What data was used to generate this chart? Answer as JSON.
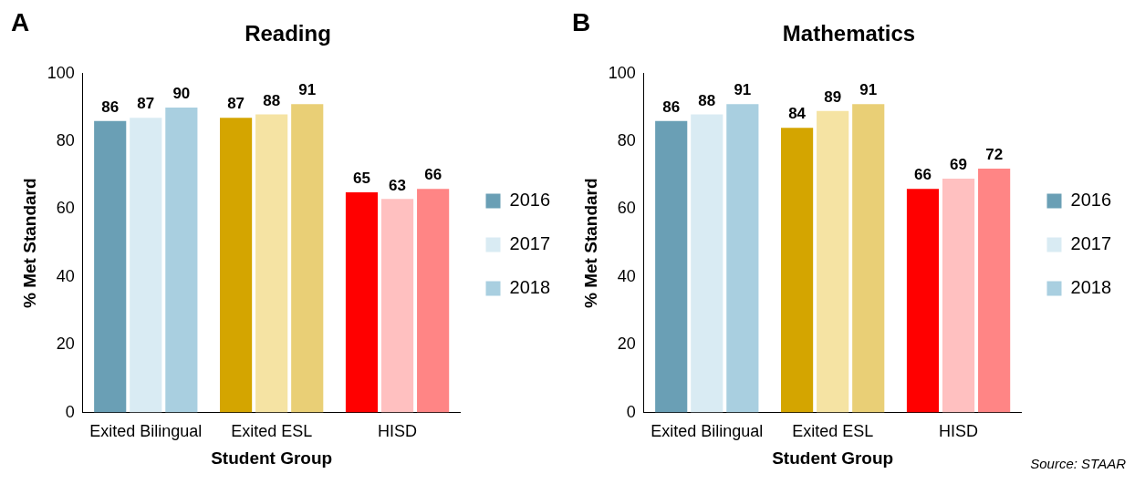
{
  "chart_data": [
    {
      "type": "bar",
      "title": "Reading",
      "xlabel": "Student Group",
      "ylabel": "% Met Standard",
      "categories": [
        "Exited Bilingual",
        "Exited ESL",
        "HISD"
      ],
      "series": [
        {
          "name": "2016",
          "color": "#6a9fb5",
          "colors": [
            "#6a9fb5",
            "#d4a500",
            "#ff0000"
          ],
          "values": [
            86,
            87,
            65
          ]
        },
        {
          "name": "2017",
          "color": "#d9ebf3",
          "colors": [
            "#d9ebf3",
            "#f5e3a3",
            "#ffc0c0"
          ],
          "values": [
            87,
            88,
            63
          ]
        },
        {
          "name": "2018",
          "color": "#a9cfe0",
          "colors": [
            "#a9cfe0",
            "#e9cf76",
            "#ff8585"
          ],
          "values": [
            90,
            91,
            66
          ]
        }
      ],
      "ylim": [
        0,
        100
      ],
      "yticks": [
        0,
        20,
        40,
        60,
        80,
        100
      ],
      "data_labels": true,
      "legend": "right",
      "annotations": [
        "A"
      ]
    },
    {
      "type": "bar",
      "title": "Mathematics",
      "xlabel": "Student Group",
      "ylabel": "% Met Standard",
      "categories": [
        "Exited Bilingual",
        "Exited ESL",
        "HISD"
      ],
      "series": [
        {
          "name": "2016",
          "color": "#6a9fb5",
          "colors": [
            "#6a9fb5",
            "#d4a500",
            "#ff0000"
          ],
          "values": [
            86,
            84,
            66
          ]
        },
        {
          "name": "2017",
          "color": "#d9ebf3",
          "colors": [
            "#d9ebf3",
            "#f5e3a3",
            "#ffc0c0"
          ],
          "values": [
            88,
            89,
            69
          ]
        },
        {
          "name": "2018",
          "color": "#a9cfe0",
          "colors": [
            "#a9cfe0",
            "#e9cf76",
            "#ff8585"
          ],
          "values": [
            91,
            91,
            72
          ]
        }
      ],
      "ylim": [
        0,
        100
      ],
      "yticks": [
        0,
        20,
        40,
        60,
        80,
        100
      ],
      "data_labels": true,
      "legend": "right",
      "annotations": [
        "B",
        "Source: STAAR"
      ]
    }
  ]
}
